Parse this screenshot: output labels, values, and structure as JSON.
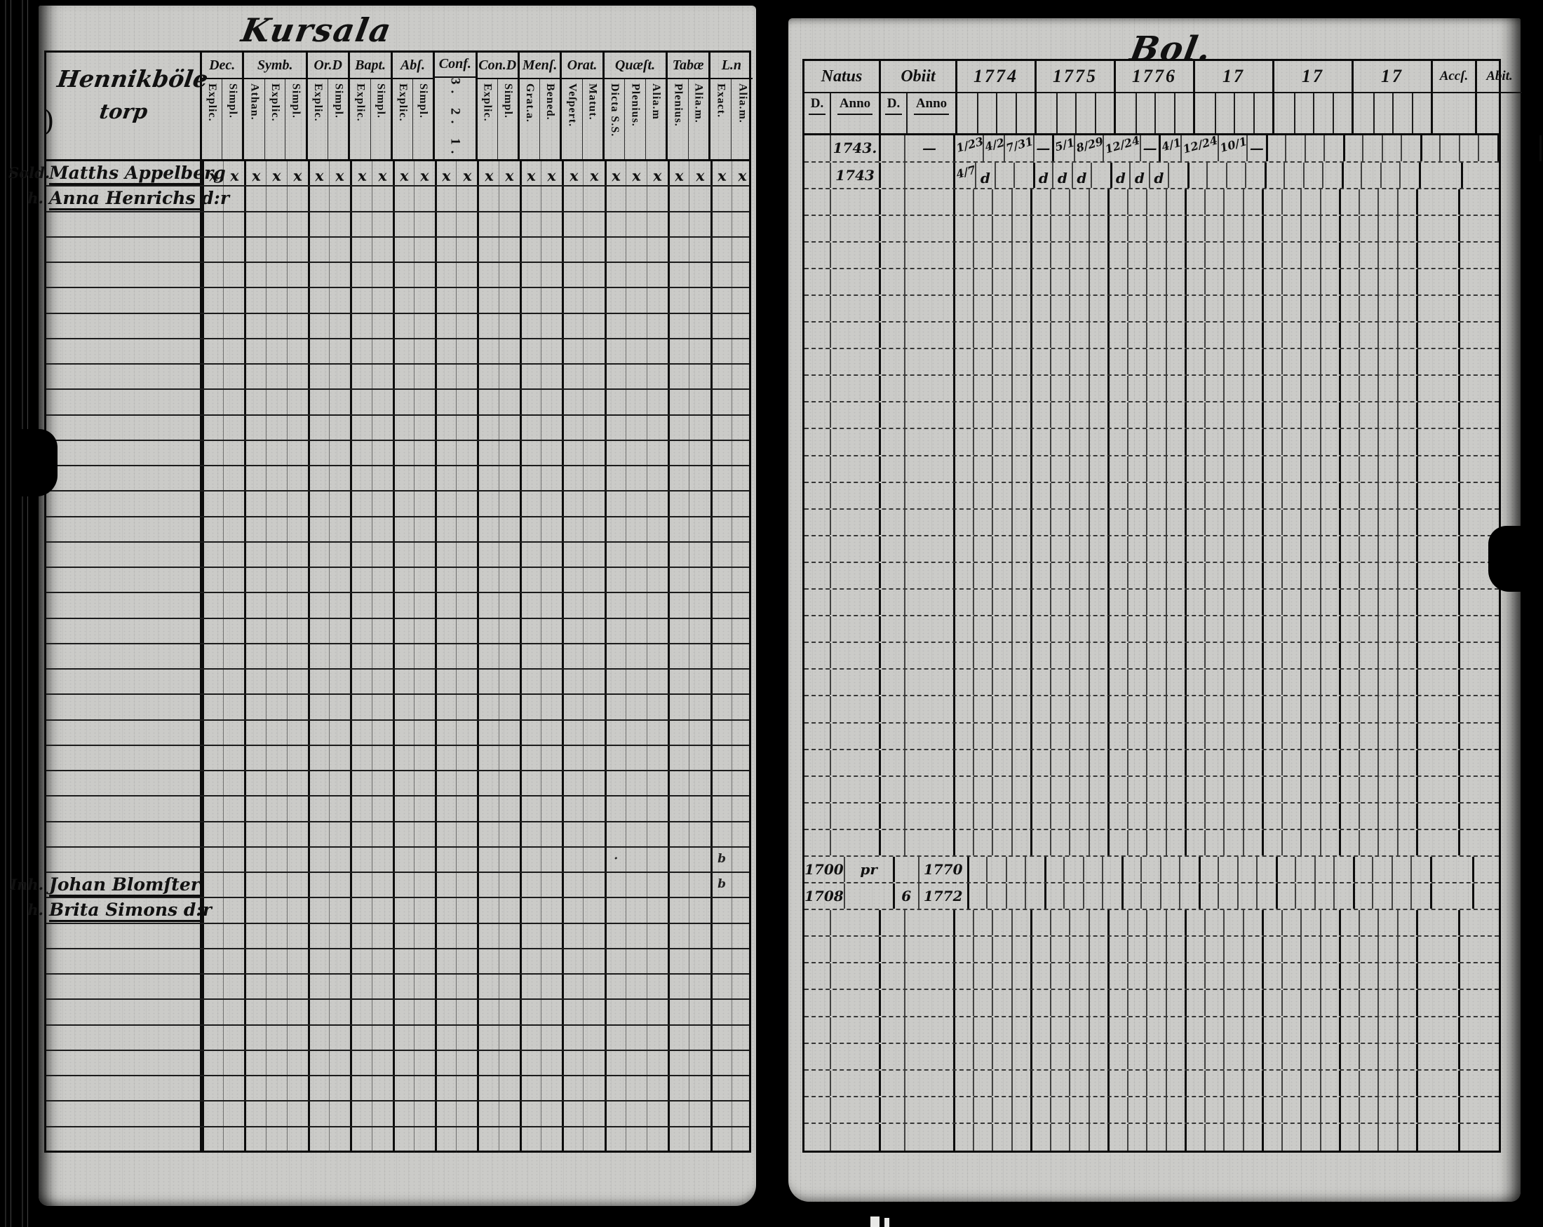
{
  "left_page": {
    "title": "Kursala",
    "heading_line1": "Hennikböle",
    "heading_line2": "torp",
    "columns": [
      {
        "label": "Dec.",
        "subs": [
          "Explic.",
          "Simpl."
        ]
      },
      {
        "label": "Symb.",
        "subs": [
          "Athan.",
          "Explic.",
          "Simpl."
        ]
      },
      {
        "label": "Or.D",
        "subs": [
          "Explic.",
          "Simpl."
        ]
      },
      {
        "label": "Bapt.",
        "subs": [
          "Explic.",
          "Simpl."
        ]
      },
      {
        "label": "Abſ.",
        "subs": [
          "Explic.",
          "Simpl."
        ]
      },
      {
        "label": "Conf.",
        "subs_span": "3. 2. 1.",
        "subs": [
          "",
          ""
        ]
      },
      {
        "label": "Con.D",
        "subs": [
          "Explic.",
          "Simpl."
        ]
      },
      {
        "label": "Menſ.",
        "subs": [
          "Grat.a.",
          "Bened."
        ]
      },
      {
        "label": "Orat.",
        "subs": [
          "Veſpert.",
          "Matut."
        ]
      },
      {
        "label": "Quæſt.",
        "subs": [
          "Dicta S.S.",
          "Plenius.",
          "Alia.m"
        ]
      },
      {
        "label": "Tabæ",
        "subs": [
          "Plenius.",
          "Alia.m."
        ]
      },
      {
        "label": "L.n",
        "subs": [
          "Exact.",
          "Alia.m."
        ]
      }
    ],
    "row_count": 39,
    "entries": [
      {
        "row": 0,
        "prefix": "Sold.",
        "name": "Matths Appelberg",
        "marks": "x-all"
      },
      {
        "row": 1,
        "prefix": "h.",
        "name": "Anna Henrichs d:r"
      },
      {
        "row": 28,
        "prefix": "Inh.",
        "name": "Johan Blomſter"
      },
      {
        "row": 29,
        "prefix": "h.",
        "name": "Brita Simons d:r"
      }
    ],
    "marks": [
      {
        "row": 27,
        "col": 24,
        "text": "b"
      },
      {
        "row": 28,
        "col": 24,
        "text": "b"
      },
      {
        "row": 27,
        "col": 19,
        "text": "·"
      }
    ],
    "mark_glyph": "x"
  },
  "right_page": {
    "title": "Bol.",
    "columns": [
      {
        "label": "Natus",
        "subs": [
          "D.",
          "Anno"
        ],
        "type": "dated"
      },
      {
        "label": "Obiit",
        "subs": [
          "D.",
          "Anno"
        ],
        "type": "dated"
      },
      {
        "label": "1774",
        "subs": [
          "",
          "",
          "",
          ""
        ],
        "type": "year"
      },
      {
        "label": "1775",
        "subs": [
          "",
          "",
          "",
          ""
        ],
        "type": "year"
      },
      {
        "label": "1776",
        "subs": [
          "",
          "",
          "",
          ""
        ],
        "type": "year"
      },
      {
        "label": "17",
        "subs": [
          "",
          "",
          "",
          ""
        ],
        "type": "year"
      },
      {
        "label": "17",
        "subs": [
          "",
          "",
          "",
          ""
        ],
        "type": "year"
      },
      {
        "label": "17",
        "subs": [
          "",
          "",
          "",
          ""
        ],
        "type": "year"
      },
      {
        "label": "Accſ.",
        "subs": [
          ""
        ],
        "type": "narrow"
      },
      {
        "label": "Abit.",
        "subs": [
          ""
        ],
        "type": "narrow"
      }
    ],
    "row_count": 38,
    "cells": [
      {
        "r": 0,
        "c": 0,
        "s": 1,
        "t": "1743."
      },
      {
        "r": 0,
        "c": 1,
        "s": 1,
        "t": "—"
      },
      {
        "r": 0,
        "c": 2,
        "s": 0,
        "t": "1/23"
      },
      {
        "r": 0,
        "c": 2,
        "s": 1,
        "t": "4/2"
      },
      {
        "r": 0,
        "c": 2,
        "s": 2,
        "t": "7/31"
      },
      {
        "r": 0,
        "c": 2,
        "s": 3,
        "t": "—"
      },
      {
        "r": 0,
        "c": 3,
        "s": 0,
        "t": "5/1"
      },
      {
        "r": 0,
        "c": 3,
        "s": 1,
        "t": "8/29"
      },
      {
        "r": 0,
        "c": 3,
        "s": 2,
        "t": "12/24"
      },
      {
        "r": 0,
        "c": 3,
        "s": 3,
        "t": "—"
      },
      {
        "r": 0,
        "c": 4,
        "s": 0,
        "t": "4/1"
      },
      {
        "r": 0,
        "c": 4,
        "s": 1,
        "t": "12/24"
      },
      {
        "r": 0,
        "c": 4,
        "s": 2,
        "t": "10/1"
      },
      {
        "r": 0,
        "c": 4,
        "s": 3,
        "t": "—"
      },
      {
        "r": 1,
        "c": 0,
        "s": 1,
        "t": "1743"
      },
      {
        "r": 1,
        "c": 2,
        "s": 0,
        "t": "4/7"
      },
      {
        "r": 1,
        "c": 2,
        "s": 1,
        "t": "d"
      },
      {
        "r": 1,
        "c": 3,
        "s": 0,
        "t": "d"
      },
      {
        "r": 1,
        "c": 3,
        "s": 1,
        "t": "d"
      },
      {
        "r": 1,
        "c": 3,
        "s": 2,
        "t": "d"
      },
      {
        "r": 1,
        "c": 4,
        "s": 0,
        "t": "d"
      },
      {
        "r": 1,
        "c": 4,
        "s": 1,
        "t": "d"
      },
      {
        "r": 1,
        "c": 4,
        "s": 2,
        "t": "d"
      },
      {
        "r": 27,
        "c": 0,
        "s": 0,
        "t": "1700"
      },
      {
        "r": 27,
        "c": 0,
        "s": 1,
        "t": "pr"
      },
      {
        "r": 27,
        "c": 1,
        "s": 1,
        "t": "1770"
      },
      {
        "r": 28,
        "c": 0,
        "s": 0,
        "t": "1708"
      },
      {
        "r": 28,
        "c": 1,
        "s": 0,
        "t": "6"
      },
      {
        "r": 28,
        "c": 1,
        "s": 1,
        "t": "1772"
      }
    ]
  },
  "decorations": {
    "margin_mark": ")"
  }
}
